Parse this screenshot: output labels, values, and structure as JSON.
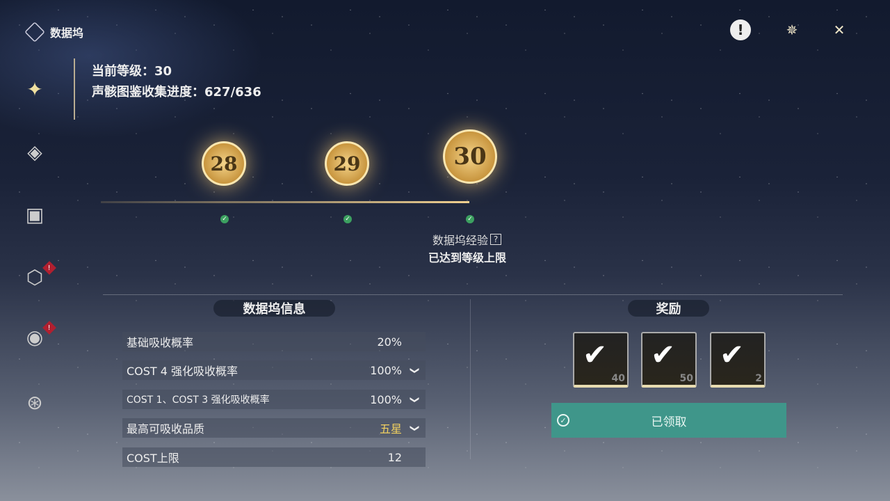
{
  "header": {
    "title": "数据坞",
    "icons": [
      "alert-icon",
      "settings-icon",
      "close-icon"
    ]
  },
  "sidebar": {
    "items": [
      {
        "name": "data-bank",
        "active": true
      },
      {
        "name": "echo",
        "active": false
      },
      {
        "name": "archive",
        "active": false
      },
      {
        "name": "sonata",
        "badge": "!"
      },
      {
        "name": "tuning",
        "badge": "!"
      },
      {
        "name": "target",
        "active": false
      }
    ]
  },
  "status": {
    "level_label": "当前等级：30",
    "collection_label": "声骸图鉴收集进度：627/636"
  },
  "levels": [
    {
      "value": "28",
      "done": true
    },
    {
      "value": "29",
      "done": true
    },
    {
      "value": "30",
      "done": true
    }
  ],
  "exp": {
    "label": "数据坞经验",
    "help": "?",
    "max_text": "已达到等级上限"
  },
  "info": {
    "title": "数据坞信息",
    "rows": [
      {
        "label": "基础吸收概率",
        "value": "20%",
        "expand": false
      },
      {
        "label": "COST 4 强化吸收概率",
        "value": "100%",
        "expand": true
      },
      {
        "label": "COST 1、COST 3 强化吸收概率",
        "value": "100%",
        "expand": true
      },
      {
        "label": "最高可吸收品质",
        "value": "五星",
        "expand": true,
        "color": "#f0d060"
      },
      {
        "label": "COST上限",
        "value": "12",
        "expand": false
      }
    ]
  },
  "rewards": {
    "title": "奖励",
    "items": [
      {
        "count": "40"
      },
      {
        "count": "50"
      },
      {
        "count": "2"
      }
    ],
    "claim_label": "已领取"
  },
  "colors": {
    "accent": "#3f968a",
    "gold": "#f0d060"
  }
}
